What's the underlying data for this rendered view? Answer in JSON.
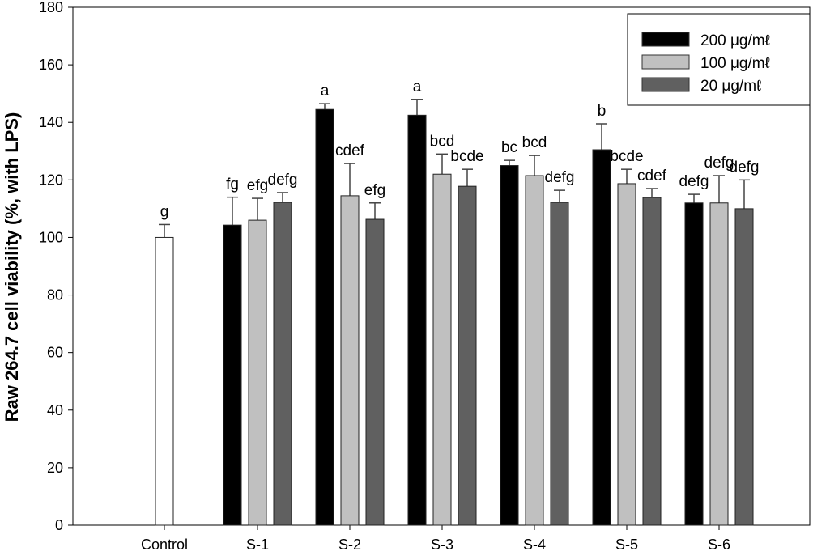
{
  "chart_data": {
    "type": "bar",
    "title": "",
    "xlabel": "",
    "ylabel": "Raw 264.7 cell viability (%, with LPS)",
    "ylim": [
      0,
      180
    ],
    "yticks": [
      0,
      20,
      40,
      60,
      80,
      100,
      120,
      140,
      160,
      180
    ],
    "grid": false,
    "legend_placement": "top-right",
    "categories": [
      "Control",
      "S-1",
      "S-2",
      "S-3",
      "S-4",
      "S-5",
      "S-6"
    ],
    "control": {
      "value": 100,
      "error": 4.5,
      "label": "g",
      "color": "#ffffff"
    },
    "series": [
      {
        "name": "200 μg/mℓ",
        "color": "#000000",
        "values": [
          null,
          104.3,
          144.5,
          142.5,
          125,
          130.5,
          112
        ],
        "errors": [
          null,
          9.7,
          2,
          5.5,
          1.8,
          9,
          3
        ],
        "labels": [
          null,
          "fg",
          "a",
          "a",
          "bc",
          "b",
          "defg"
        ]
      },
      {
        "name": "100 μg/mℓ",
        "color": "#c0c0c0",
        "values": [
          null,
          106,
          114.5,
          122,
          121.5,
          118.7,
          112
        ],
        "errors": [
          null,
          7.6,
          11.2,
          7,
          7,
          5,
          9.5
        ],
        "labels": [
          null,
          "efg",
          "cdef",
          "bcd",
          "bcd",
          "bcde",
          "defg"
        ]
      },
      {
        "name": "20 μg/mℓ",
        "color": "#606060",
        "values": [
          null,
          112.2,
          106.3,
          117.8,
          112.2,
          113.9,
          110
        ],
        "errors": [
          null,
          3.4,
          5.7,
          5.9,
          4.2,
          3.1,
          10
        ],
        "labels": [
          null,
          "defg",
          "efg",
          "bcde",
          "defg",
          "cdef",
          "defg"
        ]
      }
    ]
  }
}
